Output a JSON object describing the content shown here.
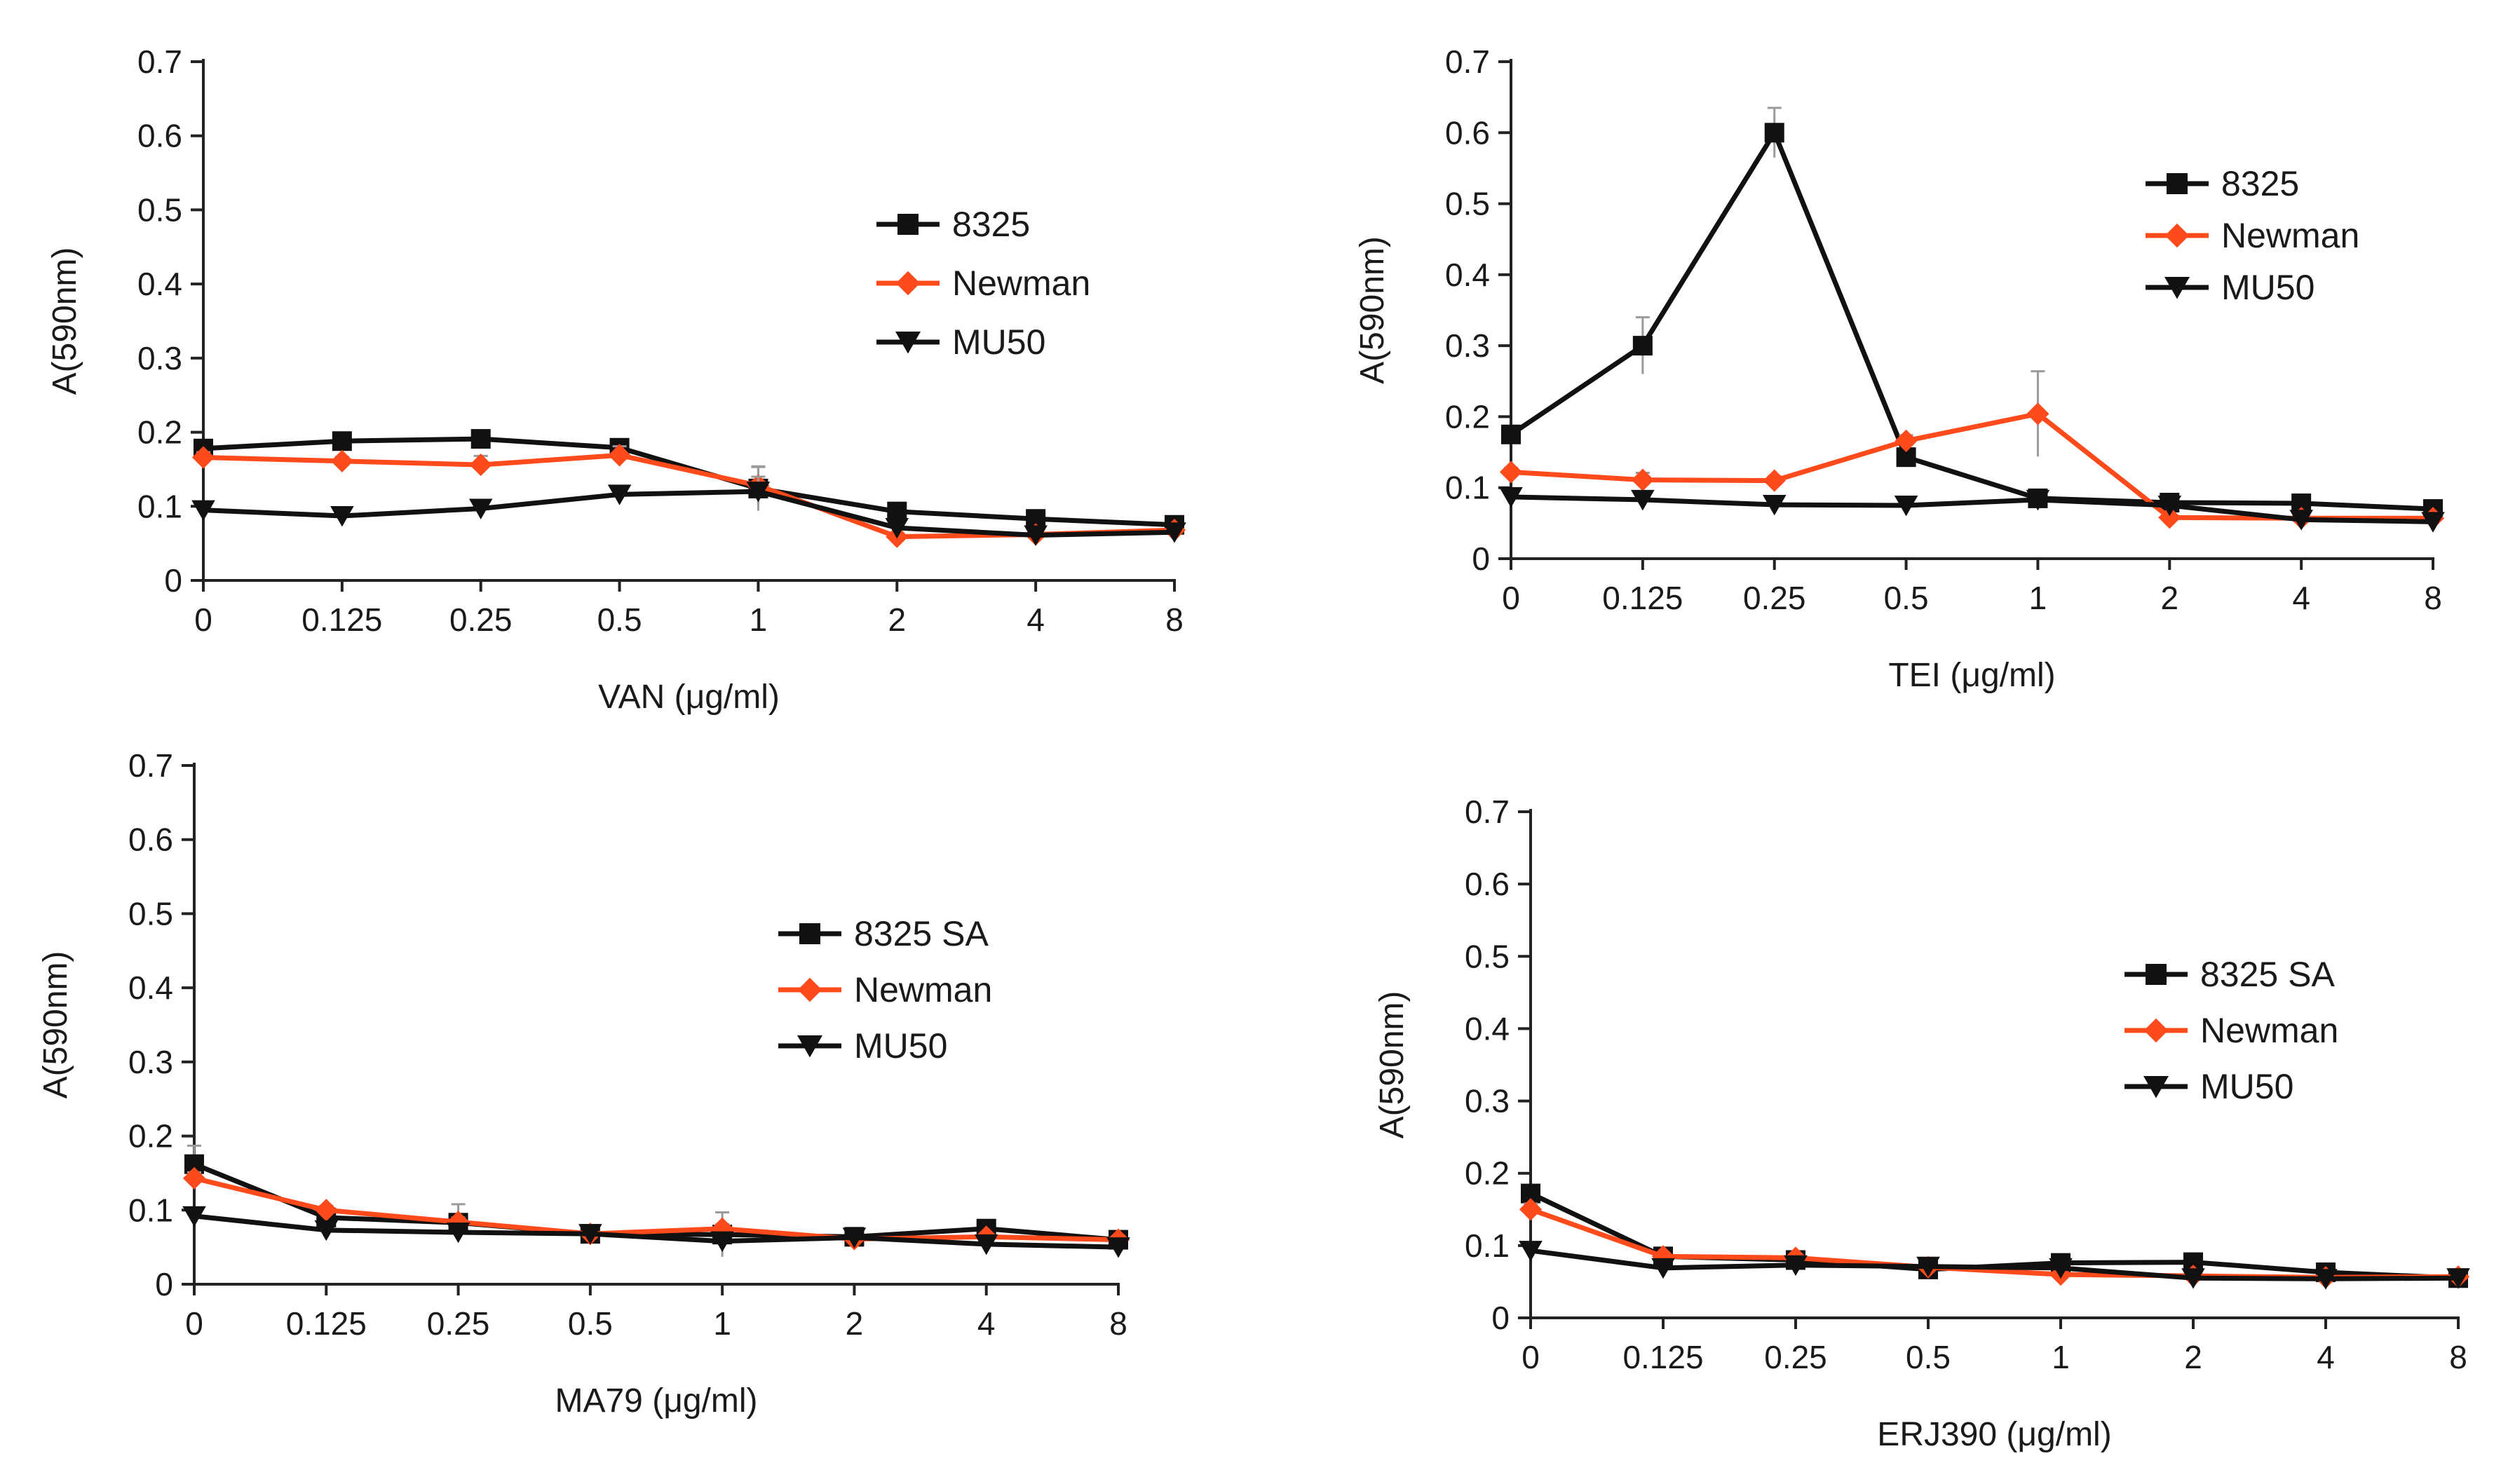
{
  "colors": {
    "black": "#111111",
    "orange": "#ff4a1c",
    "axis": "#222222",
    "error": "#9a9a9a"
  },
  "chart_data": [
    {
      "type": "line",
      "title": "",
      "xlabel": "VAN (μg/ml)",
      "ylabel": "A(590nm)",
      "categories": [
        "0",
        "0.125",
        "0.25",
        "0.5",
        "1",
        "2",
        "4",
        "8"
      ],
      "ylim": [
        0,
        0.7
      ],
      "yticks": [
        "0",
        "0.1",
        "0.2",
        "0.3",
        "0.4",
        "0.5",
        "0.6",
        "0.7"
      ],
      "legend_position": "right-middle",
      "series": [
        {
          "name": "8325",
          "color": "#111111",
          "marker": "square",
          "values": [
            0.178,
            0.188,
            0.191,
            0.179,
            0.124,
            0.093,
            0.083,
            0.075
          ],
          "errors": [
            0.006,
            0.005,
            0.006,
            0.006,
            0.03,
            0.006,
            0.006,
            0.005
          ]
        },
        {
          "name": "Newman",
          "color": "#ff4a1c",
          "marker": "diamond",
          "values": [
            0.166,
            0.161,
            0.156,
            0.169,
            0.128,
            0.059,
            0.062,
            0.068
          ],
          "errors": [
            0.007,
            0.006,
            0.012,
            0.012,
            0.025,
            0.005,
            0.005,
            0.005
          ]
        },
        {
          "name": "MU50",
          "color": "#111111",
          "marker": "triangle-down",
          "values": [
            0.095,
            0.087,
            0.097,
            0.116,
            0.12,
            0.071,
            0.061,
            0.065
          ],
          "errors": [
            0.004,
            0.004,
            0.004,
            0.006,
            0.02,
            0.004,
            0.004,
            0.004
          ]
        }
      ]
    },
    {
      "type": "line",
      "title": "",
      "xlabel": "TEI (μg/ml)",
      "ylabel": "A(590nm)",
      "categories": [
        "0",
        "0.125",
        "0.25",
        "0.5",
        "1",
        "2",
        "4",
        "8"
      ],
      "ylim": [
        0,
        0.7
      ],
      "yticks": [
        "0",
        "0.1",
        "0.2",
        "0.3",
        "0.4",
        "0.5",
        "0.6",
        "0.7"
      ],
      "legend_position": "top-right",
      "series": [
        {
          "name": "8325",
          "color": "#111111",
          "marker": "square",
          "values": [
            0.175,
            0.3,
            0.6,
            0.143,
            0.085,
            0.079,
            0.078,
            0.07
          ],
          "errors": [
            0.008,
            0.04,
            0.035,
            0.008,
            0.006,
            0.004,
            0.004,
            0.004
          ]
        },
        {
          "name": "Newman",
          "color": "#ff4a1c",
          "marker": "diamond",
          "values": [
            0.122,
            0.111,
            0.11,
            0.166,
            0.204,
            0.058,
            0.057,
            0.057
          ],
          "errors": [
            0.006,
            0.01,
            0.006,
            0.008,
            0.06,
            0.004,
            0.004,
            0.004
          ]
        },
        {
          "name": "MU50",
          "color": "#111111",
          "marker": "triangle-down",
          "values": [
            0.087,
            0.083,
            0.076,
            0.075,
            0.083,
            0.075,
            0.055,
            0.052
          ],
          "errors": [
            0.004,
            0.004,
            0.004,
            0.004,
            0.004,
            0.004,
            0.004,
            0.004
          ]
        }
      ]
    },
    {
      "type": "line",
      "title": "",
      "xlabel": "MA79 (μg/ml)",
      "ylabel": "A(590nm)",
      "categories": [
        "0",
        "0.125",
        "0.25",
        "0.5",
        "1",
        "2",
        "4",
        "8"
      ],
      "ylim": [
        0,
        0.7
      ],
      "yticks": [
        "0",
        "0.1",
        "0.2",
        "0.3",
        "0.4",
        "0.5",
        "0.6",
        "0.7"
      ],
      "legend_position": "right-middle",
      "series": [
        {
          "name": "8325 SA",
          "color": "#111111",
          "marker": "square",
          "values": [
            0.162,
            0.09,
            0.083,
            0.068,
            0.067,
            0.064,
            0.075,
            0.06
          ],
          "errors": [
            0.025,
            0.006,
            0.025,
            0.006,
            0.03,
            0.005,
            0.006,
            0.005
          ]
        },
        {
          "name": "Newman",
          "color": "#ff4a1c",
          "marker": "diamond",
          "values": [
            0.143,
            0.1,
            0.084,
            0.068,
            0.075,
            0.061,
            0.064,
            0.06
          ],
          "errors": [
            0.008,
            0.006,
            0.006,
            0.006,
            0.006,
            0.005,
            0.005,
            0.005
          ]
        },
        {
          "name": "MU50",
          "color": "#111111",
          "marker": "triangle-down",
          "values": [
            0.092,
            0.073,
            0.07,
            0.068,
            0.058,
            0.063,
            0.054,
            0.05
          ],
          "errors": [
            0.004,
            0.004,
            0.004,
            0.004,
            0.004,
            0.004,
            0.004,
            0.004
          ]
        }
      ]
    },
    {
      "type": "line",
      "title": "",
      "xlabel": "ERJ390 (μg/ml)",
      "ylabel": "A(590nm)",
      "categories": [
        "0",
        "0.125",
        "0.25",
        "0.5",
        "1",
        "2",
        "4",
        "8"
      ],
      "ylim": [
        0,
        0.7
      ],
      "yticks": [
        "0",
        "0.1",
        "0.2",
        "0.3",
        "0.4",
        "0.5",
        "0.6",
        "0.7"
      ],
      "legend_position": "right-middle",
      "series": [
        {
          "name": "8325 SA",
          "color": "#111111",
          "marker": "square",
          "values": [
            0.172,
            0.085,
            0.08,
            0.067,
            0.076,
            0.077,
            0.063,
            0.055
          ],
          "errors": [
            0.008,
            0.005,
            0.005,
            0.005,
            0.006,
            0.005,
            0.005,
            0.005
          ]
        },
        {
          "name": "Newman",
          "color": "#ff4a1c",
          "marker": "diamond",
          "values": [
            0.15,
            0.085,
            0.083,
            0.07,
            0.06,
            0.058,
            0.056,
            0.057
          ],
          "errors": [
            0.008,
            0.005,
            0.005,
            0.005,
            0.005,
            0.005,
            0.005,
            0.005
          ]
        },
        {
          "name": "MU50",
          "color": "#111111",
          "marker": "triangle-down",
          "values": [
            0.093,
            0.069,
            0.073,
            0.071,
            0.069,
            0.055,
            0.054,
            0.055
          ],
          "errors": [
            0.004,
            0.004,
            0.004,
            0.004,
            0.004,
            0.004,
            0.004,
            0.004
          ]
        }
      ]
    }
  ]
}
